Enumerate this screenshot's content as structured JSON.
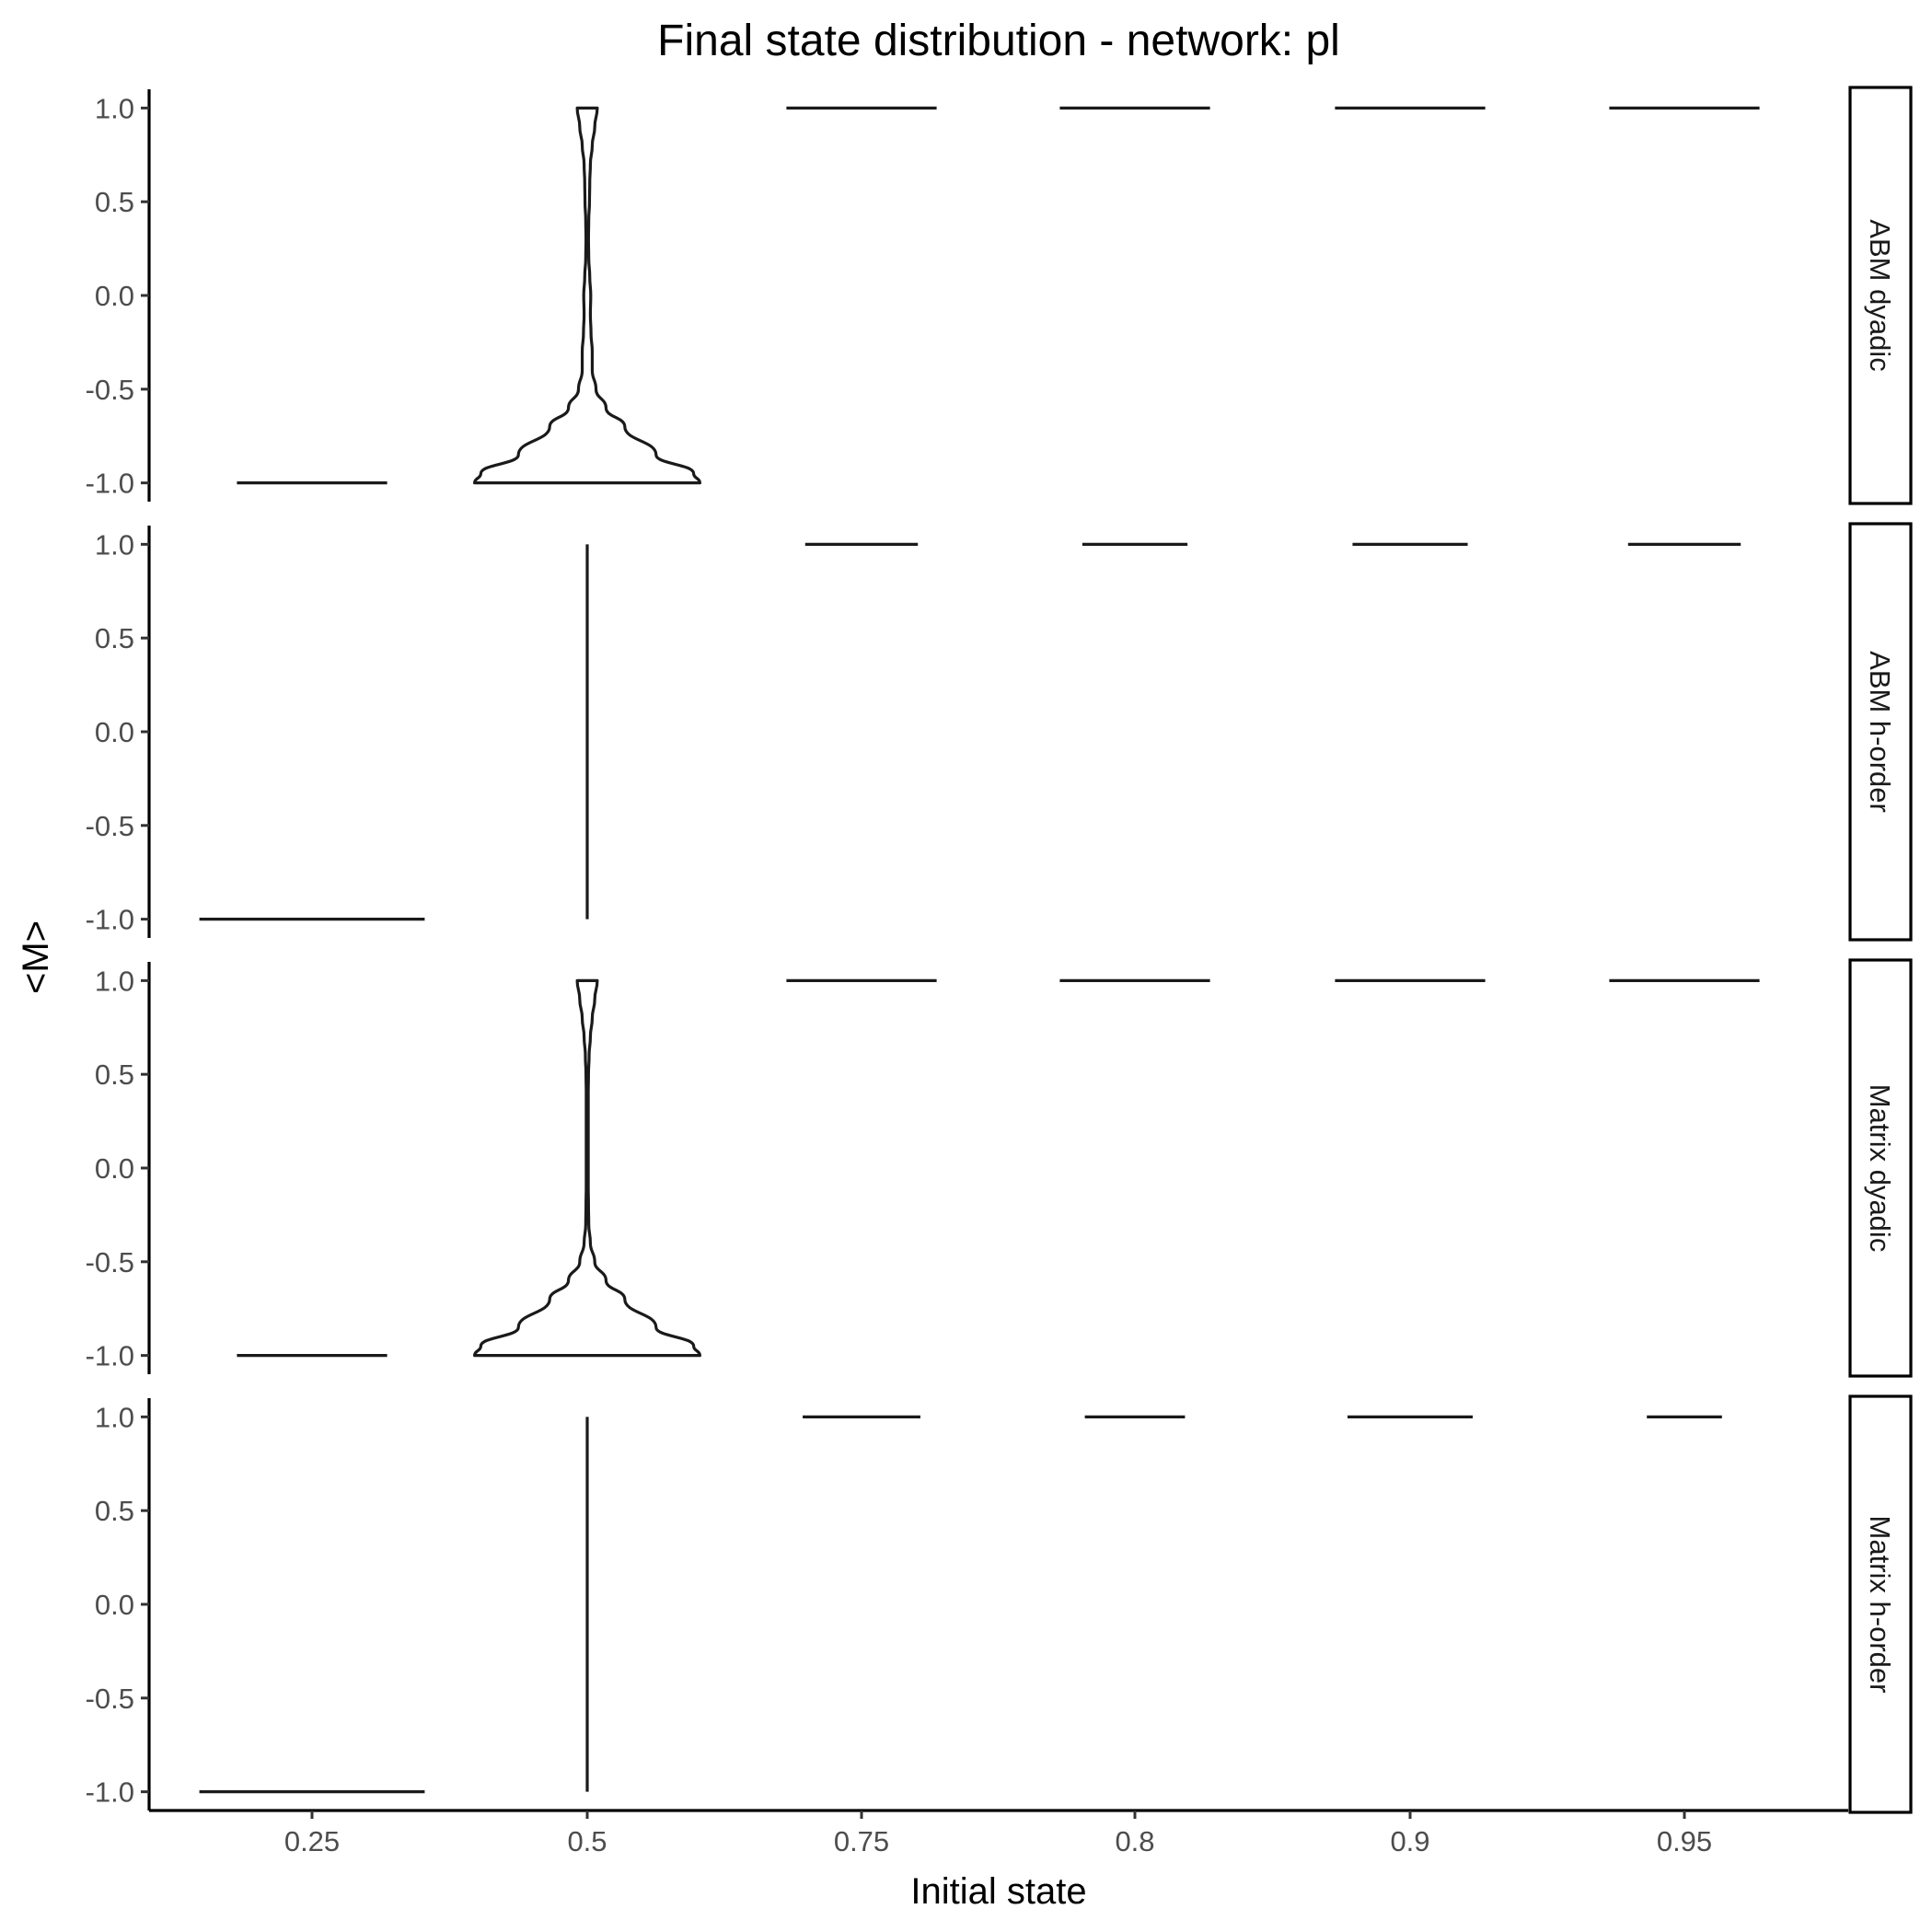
{
  "chart_data": {
    "type": "violin",
    "title": "Final state distribution - network: pl",
    "xlabel": "Initial state",
    "ylabel": "<M>",
    "categories": [
      "0.25",
      "0.5",
      "0.75",
      "0.8",
      "0.9",
      "0.95"
    ],
    "y_ticks": [
      1.0,
      0.5,
      0.0,
      -0.5,
      -1.0
    ],
    "y_tick_labels": [
      "1.0",
      "0.5",
      "0.0",
      "-0.5",
      "-1.0"
    ],
    "ylim": [
      -1.1,
      1.1
    ],
    "grid": false,
    "facets": [
      {
        "label": "ABM dyadic",
        "violins": [
          {
            "category": "0.25",
            "profile": [
              [
                -1.0,
                0.6
              ]
            ]
          },
          {
            "category": "0.5",
            "profile": [
              [
                -1.0,
                0.9
              ],
              [
                -0.95,
                0.85
              ],
              [
                -0.85,
                0.55
              ],
              [
                -0.7,
                0.3
              ],
              [
                -0.6,
                0.15
              ],
              [
                -0.5,
                0.07
              ],
              [
                -0.4,
                0.04
              ],
              [
                -0.3,
                0.04
              ],
              [
                -0.2,
                0.03
              ],
              [
                -0.1,
                0.025
              ],
              [
                0.0,
                0.028
              ],
              [
                0.1,
                0.02
              ],
              [
                0.2,
                0.012
              ],
              [
                0.3,
                0.01
              ],
              [
                0.4,
                0.012
              ],
              [
                0.5,
                0.018
              ],
              [
                0.6,
                0.02
              ],
              [
                0.7,
                0.025
              ],
              [
                0.8,
                0.04
              ],
              [
                0.9,
                0.06
              ],
              [
                1.0,
                0.08
              ]
            ]
          },
          {
            "category": "0.75",
            "profile": [
              [
                1.0,
                0.6
              ]
            ]
          },
          {
            "category": "0.8",
            "profile": [
              [
                1.0,
                0.6
              ]
            ]
          },
          {
            "category": "0.9",
            "profile": [
              [
                1.0,
                0.6
              ]
            ]
          },
          {
            "category": "0.95",
            "profile": [
              [
                1.0,
                0.6
              ]
            ]
          }
        ]
      },
      {
        "label": "ABM h-order",
        "violins": [
          {
            "category": "0.25",
            "profile": [
              [
                -1.0,
                0.9
              ]
            ]
          },
          {
            "category": "0.5",
            "profile": [
              [
                -1.0,
                0.0
              ],
              [
                1.0,
                0.0
              ]
            ]
          },
          {
            "category": "0.75",
            "profile": [
              [
                1.0,
                0.45
              ]
            ]
          },
          {
            "category": "0.8",
            "profile": [
              [
                1.0,
                0.42
              ]
            ]
          },
          {
            "category": "0.9",
            "profile": [
              [
                1.0,
                0.46
              ]
            ]
          },
          {
            "category": "0.95",
            "profile": [
              [
                1.0,
                0.45
              ]
            ]
          }
        ]
      },
      {
        "label": "Matrix dyadic",
        "violins": [
          {
            "category": "0.25",
            "profile": [
              [
                -1.0,
                0.6
              ]
            ]
          },
          {
            "category": "0.5",
            "profile": [
              [
                -1.0,
                0.9
              ],
              [
                -0.95,
                0.85
              ],
              [
                -0.85,
                0.55
              ],
              [
                -0.7,
                0.3
              ],
              [
                -0.6,
                0.15
              ],
              [
                -0.5,
                0.06
              ],
              [
                -0.4,
                0.025
              ],
              [
                -0.3,
                0.012
              ],
              [
                -0.2,
                0.01
              ],
              [
                -0.1,
                0.008
              ],
              [
                0.0,
                0.008
              ],
              [
                0.2,
                0.008
              ],
              [
                0.4,
                0.008
              ],
              [
                0.5,
                0.01
              ],
              [
                0.6,
                0.015
              ],
              [
                0.7,
                0.025
              ],
              [
                0.8,
                0.04
              ],
              [
                0.9,
                0.06
              ],
              [
                1.0,
                0.08
              ]
            ]
          },
          {
            "category": "0.75",
            "profile": [
              [
                1.0,
                0.6
              ]
            ]
          },
          {
            "category": "0.8",
            "profile": [
              [
                1.0,
                0.6
              ]
            ]
          },
          {
            "category": "0.9",
            "profile": [
              [
                1.0,
                0.6
              ]
            ]
          },
          {
            "category": "0.95",
            "profile": [
              [
                1.0,
                0.6
              ]
            ]
          }
        ]
      },
      {
        "label": "Matrix h-order",
        "violins": [
          {
            "category": "0.25",
            "profile": [
              [
                -1.0,
                0.9
              ]
            ]
          },
          {
            "category": "0.5",
            "profile": [
              [
                -1.0,
                0.0
              ],
              [
                1.0,
                0.0
              ]
            ]
          },
          {
            "category": "0.75",
            "profile": [
              [
                1.0,
                0.47
              ]
            ]
          },
          {
            "category": "0.8",
            "profile": [
              [
                1.0,
                0.4
              ]
            ]
          },
          {
            "category": "0.9",
            "profile": [
              [
                1.0,
                0.5
              ]
            ]
          },
          {
            "category": "0.95",
            "profile": [
              [
                1.0,
                0.3
              ]
            ]
          }
        ]
      }
    ]
  }
}
